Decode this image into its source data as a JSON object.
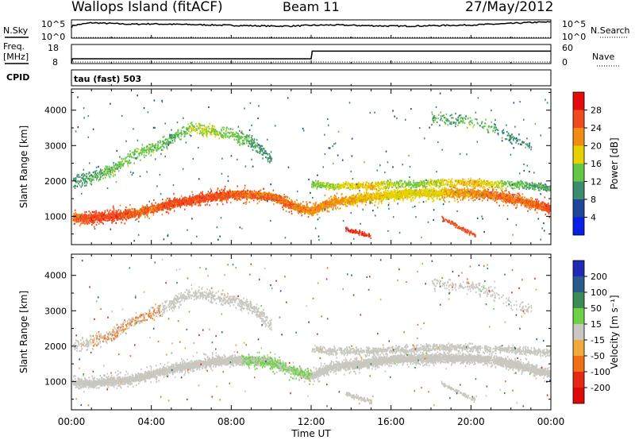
{
  "header": {
    "title": "Wallops Island (fitACF)",
    "beam": "Beam 11",
    "date": "27/May/2012"
  },
  "top_panels": {
    "nsky_label": "N.Sky",
    "nsearch_label": "N.Search",
    "n_tick_hi": "10^5",
    "n_tick_lo": "10^0",
    "freq_label": "Freq.",
    "freq_unit": "[MHz]",
    "freq_tick_hi": "18",
    "freq_tick_lo": "8",
    "nave_label": "Nave",
    "nave_tick_hi": "60",
    "nave_tick_lo": "0",
    "cpid_label": "CPID",
    "mode_text": "tau (fast) 503"
  },
  "x_axis": {
    "label": "Time UT",
    "ticks": [
      "00:00",
      "04:00",
      "08:00",
      "12:00",
      "16:00",
      "20:00",
      "00:00"
    ]
  },
  "y_axis": {
    "label": "Slant Range [km]",
    "ticks": [
      "1000",
      "2000",
      "3000",
      "4000"
    ]
  },
  "power_scale": {
    "label": "Power [dB]",
    "ticks": [
      "4",
      "8",
      "12",
      "16",
      "20",
      "24",
      "28"
    ],
    "colors": [
      "#0a1ee6",
      "#1e469a",
      "#3c8c6e",
      "#64c846",
      "#e6d200",
      "#f08c14",
      "#f04b1e",
      "#e60a0a"
    ]
  },
  "velocity_scale": {
    "label": "Velocity [m s⁻¹]",
    "ticks": [
      "200",
      "100",
      "50",
      "15",
      "-15",
      "-50",
      "-100",
      "-200"
    ],
    "colors": [
      "#1e2ab4",
      "#2a5a8c",
      "#3c8c55",
      "#6ed246",
      "#c8c8c0",
      "#f0aa3c",
      "#f06e14",
      "#e62814",
      "#dc0a0a"
    ]
  },
  "chart_data": [
    {
      "type": "line",
      "title": "N.Sky / N.Search",
      "x": [
        0,
        0.1,
        1,
        2,
        3,
        4,
        5,
        6,
        7,
        8,
        9,
        10,
        11,
        12,
        13,
        14,
        15,
        16,
        17,
        18,
        19,
        20,
        21,
        22,
        23,
        24
      ],
      "series": [
        {
          "name": "N.Sky",
          "values": [
            3.0,
            3.5,
            4.2,
            4.0,
            3.8,
            3.9,
            3.8,
            3.7,
            3.6,
            3.5,
            3.4,
            3.3,
            3.3,
            3.5,
            3.6,
            3.5,
            3.4,
            3.3,
            3.3,
            3.4,
            3.5,
            3.6,
            3.8,
            4.0,
            4.3,
            4.4
          ]
        },
        {
          "name": "N.Search",
          "values": [
            0.2,
            0.2,
            0.2,
            0.2,
            0.2,
            0.2,
            0.2,
            0.2,
            0.2,
            0.2,
            0.2,
            0.2,
            0.2,
            0.2,
            0.2,
            0.2,
            0.2,
            0.2,
            0.2,
            0.2,
            0.2,
            0.2,
            0.2,
            0.2,
            0.2,
            0.2
          ]
        }
      ],
      "ylim": [
        0,
        5
      ]
    },
    {
      "type": "line",
      "title": "Freq. / Nave",
      "xlabel": "Time UT",
      "x": [
        0,
        0.05,
        12.0,
        12.05,
        24
      ],
      "series": [
        {
          "name": "Freq.",
          "values": [
            8,
            10.5,
            10.5,
            14.5,
            14.5
          ]
        },
        {
          "name": "Nave",
          "values": [
            0,
            5,
            5,
            5,
            5
          ]
        }
      ],
      "ylim": [
        8,
        18
      ]
    },
    {
      "type": "heatmap",
      "title": "Power [dB]",
      "xlabel": "Time UT",
      "ylabel": "Slant Range [km]",
      "xlim": [
        0,
        24
      ],
      "ylim": [
        200,
        4600
      ],
      "xticks": [
        "00:00",
        "04:00",
        "08:00",
        "12:00",
        "16:00",
        "20:00",
        "00:00"
      ],
      "clim": [
        0,
        30
      ],
      "main_band": {
        "hours": [
          0,
          1,
          2,
          3,
          4,
          5,
          6,
          7,
          8,
          9,
          10,
          11,
          12,
          13,
          14,
          15,
          16,
          17,
          18,
          19,
          20,
          21,
          22,
          23,
          24
        ],
        "range_km": [
          950,
          950,
          1000,
          1050,
          1200,
          1350,
          1450,
          1550,
          1600,
          1600,
          1550,
          1300,
          1150,
          1400,
          1450,
          1550,
          1600,
          1650,
          1650,
          1650,
          1650,
          1600,
          1500,
          1350,
          1200
        ],
        "power_db": [
          24,
          26,
          26,
          25,
          24,
          26,
          26,
          26,
          25,
          24,
          24,
          24,
          22,
          22,
          20,
          20,
          18,
          18,
          18,
          20,
          22,
          24,
          24,
          24,
          26
        ]
      },
      "upper_band": {
        "hours": [
          0,
          1,
          2,
          3,
          4,
          5,
          6,
          7,
          8,
          9,
          10
        ],
        "range_km": [
          2000,
          2100,
          2300,
          2700,
          2900,
          3200,
          3500,
          3400,
          3300,
          3100,
          2600
        ],
        "power_db": [
          10,
          12,
          14,
          14,
          14,
          12,
          16,
          16,
          14,
          12,
          10
        ]
      },
      "secondary_band": {
        "hours": [
          12,
          13,
          14,
          15,
          16,
          17,
          18,
          19,
          20,
          21,
          22,
          23,
          24
        ],
        "range_km": [
          1900,
          1850,
          1850,
          1850,
          1900,
          1900,
          1950,
          1950,
          1950,
          1900,
          1900,
          1850,
          1800
        ],
        "power_db": [
          14,
          16,
          18,
          20,
          16,
          14,
          16,
          18,
          20,
          18,
          14,
          12,
          12
        ]
      },
      "low_patches": [
        {
          "hours": [
            13.7,
            15.0
          ],
          "range_km": [
            420,
            650
          ],
          "power_db": 28
        },
        {
          "hours": [
            18.5,
            20.2
          ],
          "range_km": [
            450,
            950
          ],
          "power_db": 26
        }
      ],
      "late_upper": {
        "hours": [
          18,
          19,
          20,
          21,
          22,
          23
        ],
        "range_km": [
          3800,
          3700,
          3700,
          3500,
          3200,
          3000
        ],
        "power_db": [
          12,
          12,
          14,
          12,
          10,
          10
        ]
      }
    },
    {
      "type": "heatmap",
      "title": "Velocity [m s⁻¹]",
      "xlabel": "Time UT",
      "ylabel": "Slant Range [km]",
      "xlim": [
        0,
        24
      ],
      "ylim": [
        200,
        4600
      ],
      "xticks": [
        "00:00",
        "04:00",
        "08:00",
        "12:00",
        "16:00",
        "20:00",
        "00:00"
      ],
      "clim": [
        -200,
        200
      ],
      "dominant_value": 0,
      "positive_region": {
        "hours": [
          8.5,
          12.0
        ],
        "range_km": [
          700,
          2200
        ],
        "velocity": 30
      },
      "negative_region": {
        "hours": [
          1.0,
          4.5
        ],
        "range_km": [
          2000,
          3600
        ],
        "velocity": -60
      }
    }
  ]
}
